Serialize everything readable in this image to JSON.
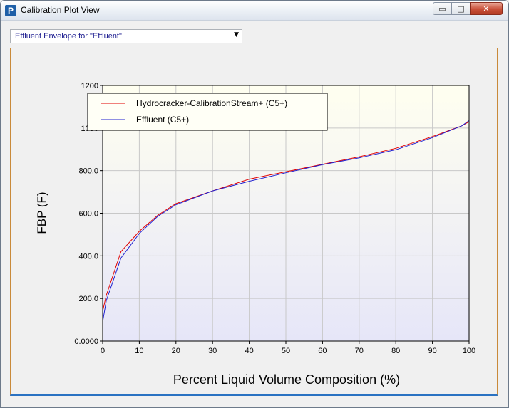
{
  "window": {
    "title": "Calibration Plot View"
  },
  "window_controls": {
    "minimize": "▭",
    "maximize": "□",
    "close": "✕"
  },
  "selector": {
    "value": "Effluent Envelope for \"Effluent\""
  },
  "colors": {
    "series1": "#e00000",
    "series2": "#2020d0",
    "plot_top": "#fffff0",
    "plot_bottom": "#e6e6f8"
  },
  "chart_data": {
    "type": "line",
    "xlabel": "Percent Liquid Volume Composition (%)",
    "ylabel": "FBP (F)",
    "xlim": [
      0,
      100
    ],
    "ylim": [
      0,
      1200
    ],
    "x_ticks": [
      "0",
      "10",
      "20",
      "30",
      "40",
      "50",
      "60",
      "70",
      "80",
      "90",
      "100"
    ],
    "y_ticks": [
      "0.0000",
      "200.0",
      "400.0",
      "600.0",
      "800.0",
      "1000",
      "1200"
    ],
    "grid": true,
    "legend": "top-left",
    "series": [
      {
        "name": "Hydrocracker-CalibrationStream+ (C5+)",
        "color": "#e00000",
        "x": [
          0,
          1,
          5,
          10,
          15,
          20,
          30,
          40,
          50,
          60,
          70,
          80,
          90,
          98,
          100
        ],
        "y": [
          140,
          215,
          420,
          515,
          590,
          645,
          705,
          760,
          795,
          830,
          865,
          905,
          960,
          1010,
          1030
        ]
      },
      {
        "name": "Effluent (C5+)",
        "color": "#2020d0",
        "x": [
          0,
          1,
          5,
          10,
          15,
          20,
          30,
          40,
          50,
          60,
          70,
          80,
          90,
          98,
          100
        ],
        "y": [
          90,
          190,
          390,
          505,
          585,
          640,
          705,
          750,
          790,
          828,
          860,
          898,
          955,
          1010,
          1035
        ]
      }
    ]
  }
}
